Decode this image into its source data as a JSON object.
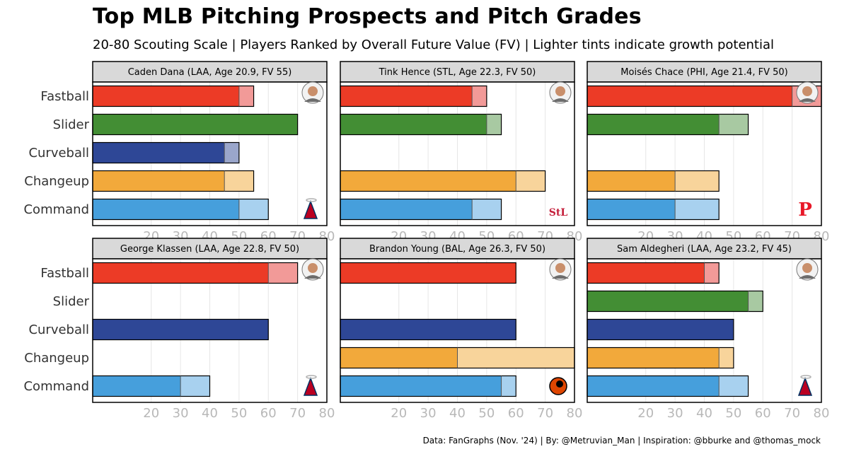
{
  "title": "Top MLB Pitching Prospects and Pitch Grades",
  "subtitle": "20-80 Scouting Scale  |  Players Ranked by Overall Future Value (FV)  |  Lighter tints indicate growth potential",
  "caption": "Data: FanGraphs (Nov. '24) | By: @Metruvian_Man | Inspiration: @bburke and @thomas_mock",
  "colors": {
    "Fastball": {
      "present": "#ec3b26",
      "future": "#f29a98"
    },
    "Slider": {
      "present": "#438e34",
      "future": "#a8c9a2"
    },
    "Curveball": {
      "present": "#2e4796",
      "future": "#9aa6cb"
    },
    "Changeup": {
      "present": "#f2a93b",
      "future": "#f8d49b"
    },
    "Command": {
      "present": "#469fdc",
      "future": "#a8d1ef"
    },
    "strip_bg": "#d9d9d9",
    "grid": "#e6e6e6"
  },
  "chart_data": {
    "type": "bar",
    "orientation": "horizontal",
    "facets": "2x3",
    "categories": [
      "Fastball",
      "Slider",
      "Curveball",
      "Changeup",
      "Command"
    ],
    "xlim": [
      0,
      80
    ],
    "xticks": [
      20,
      30,
      40,
      50,
      60,
      70,
      80
    ],
    "grid": true,
    "panels": [
      {
        "strip": "Caden Dana (LAA, Age 20.9, FV 55)",
        "team": "LAA",
        "grades": {
          "Fastball": {
            "present": 50,
            "future": 55
          },
          "Slider": {
            "present": 70,
            "future": 70
          },
          "Curveball": {
            "present": 45,
            "future": 50
          },
          "Changeup": {
            "present": 45,
            "future": 55
          },
          "Command": {
            "present": 50,
            "future": 60
          }
        }
      },
      {
        "strip": "Tink Hence (STL, Age 22.3, FV 50)",
        "team": "STL",
        "grades": {
          "Fastball": {
            "present": 45,
            "future": 50
          },
          "Slider": {
            "present": 50,
            "future": 55
          },
          "Changeup": {
            "present": 60,
            "future": 70
          },
          "Command": {
            "present": 45,
            "future": 55
          }
        }
      },
      {
        "strip": "Moisés Chace (PHI, Age 21.4, FV 50)",
        "team": "PHI",
        "grades": {
          "Fastball": {
            "present": 70,
            "future": 80
          },
          "Slider": {
            "present": 45,
            "future": 55
          },
          "Changeup": {
            "present": 30,
            "future": 45
          },
          "Command": {
            "present": 30,
            "future": 45
          }
        }
      },
      {
        "strip": "George Klassen (LAA, Age 22.8, FV 50)",
        "team": "LAA",
        "grades": {
          "Fastball": {
            "present": 60,
            "future": 70
          },
          "Curveball": {
            "present": 60,
            "future": 60
          },
          "Command": {
            "present": 30,
            "future": 40
          }
        }
      },
      {
        "strip": "Brandon Young (BAL, Age 26.3, FV 50)",
        "team": "BAL",
        "grades": {
          "Fastball": {
            "present": 60,
            "future": 60
          },
          "Curveball": {
            "present": 60,
            "future": 60
          },
          "Changeup": {
            "present": 40,
            "future": 80
          },
          "Command": {
            "present": 55,
            "future": 60
          }
        }
      },
      {
        "strip": "Sam Aldegheri (LAA, Age 23.2, FV 45)",
        "team": "LAA",
        "grades": {
          "Fastball": {
            "present": 40,
            "future": 45
          },
          "Slider": {
            "present": 55,
            "future": 60
          },
          "Curveball": {
            "present": 50,
            "future": 50
          },
          "Changeup": {
            "present": 45,
            "future": 50
          },
          "Command": {
            "present": 45,
            "future": 55
          }
        }
      }
    ]
  }
}
